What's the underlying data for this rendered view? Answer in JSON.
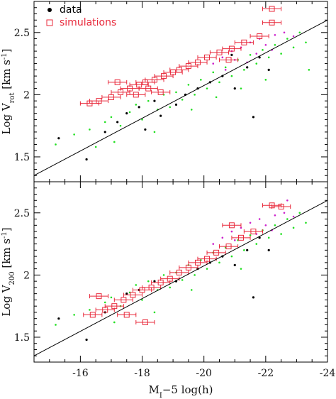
{
  "chart_data": [
    {
      "type": "scatter",
      "panel": "top",
      "ylabel_html": "Log V<tspan baseline-shift=\"sub\" font-size=\"10\">rot</tspan> [km s<tspan baseline-shift=\"super\" font-size=\"10\">-1</tspan>]",
      "ylabel": "Log V_rot [km s^-1]",
      "xlim": [
        -14.5,
        -24
      ],
      "ylim": [
        1.3,
        2.75
      ],
      "x_ticks": [
        -16,
        -18,
        -20,
        -22,
        -24
      ],
      "y_ticks": [
        1.5,
        2,
        2.5
      ],
      "x_tick_labels_shown": false,
      "legend": {
        "position": "top-left",
        "entries": [
          {
            "label": "data",
            "marker": "filled-circle",
            "color": "#000000"
          },
          {
            "label": "simulations",
            "marker": "open-square",
            "color": "#e8283a"
          }
        ]
      },
      "fit_line": {
        "x": [
          -14.5,
          -24
        ],
        "y": [
          1.35,
          2.6
        ]
      },
      "series": [
        {
          "name": "data",
          "color": "#000000",
          "points": [
            [
              -16.2,
              1.48
            ],
            [
              -15.3,
              1.65
            ],
            [
              -16.8,
              1.7
            ],
            [
              -17.2,
              1.78
            ],
            [
              -17.5,
              1.85
            ],
            [
              -17.9,
              1.9
            ],
            [
              -18.4,
              1.95
            ],
            [
              -18.6,
              1.83
            ],
            [
              -19.1,
              1.92
            ],
            [
              -19.4,
              2.0
            ],
            [
              -19.8,
              2.05
            ],
            [
              -20.2,
              2.1
            ],
            [
              -20.6,
              2.15
            ],
            [
              -21.0,
              2.05
            ],
            [
              -21.4,
              2.22
            ],
            [
              -21.8,
              2.3
            ],
            [
              -22.1,
              2.2
            ],
            [
              -21.6,
              1.82
            ],
            [
              -20.9,
              2.32
            ],
            [
              -18.1,
              1.72
            ]
          ]
        },
        {
          "name": "green",
          "color": "#22e022",
          "points": [
            [
              -15.2,
              1.6
            ],
            [
              -15.8,
              1.68
            ],
            [
              -16.3,
              1.72
            ],
            [
              -16.8,
              1.78
            ],
            [
              -17.0,
              1.82
            ],
            [
              -17.3,
              1.75
            ],
            [
              -17.6,
              1.86
            ],
            [
              -17.8,
              1.92
            ],
            [
              -18.0,
              1.8
            ],
            [
              -18.2,
              1.95
            ],
            [
              -18.5,
              1.88
            ],
            [
              -18.7,
              2.0
            ],
            [
              -18.9,
              1.9
            ],
            [
              -19.1,
              2.02
            ],
            [
              -19.3,
              1.96
            ],
            [
              -19.5,
              2.08
            ],
            [
              -19.7,
              2.0
            ],
            [
              -19.9,
              2.12
            ],
            [
              -20.1,
              2.05
            ],
            [
              -20.3,
              2.18
            ],
            [
              -20.5,
              2.1
            ],
            [
              -20.7,
              2.22
            ],
            [
              -20.9,
              2.15
            ],
            [
              -21.1,
              2.28
            ],
            [
              -21.3,
              2.2
            ],
            [
              -21.5,
              2.32
            ],
            [
              -21.7,
              2.25
            ],
            [
              -21.9,
              2.36
            ],
            [
              -22.1,
              2.3
            ],
            [
              -22.3,
              2.4
            ],
            [
              -22.5,
              2.33
            ],
            [
              -22.7,
              2.45
            ],
            [
              -22.9,
              2.38
            ],
            [
              -23.1,
              2.5
            ],
            [
              -23.3,
              2.42
            ],
            [
              -20.4,
              1.98
            ],
            [
              -19.6,
              1.88
            ],
            [
              -21.2,
              2.05
            ],
            [
              -22.0,
              2.12
            ],
            [
              -18.4,
              1.7
            ],
            [
              -17.1,
              1.62
            ],
            [
              -16.5,
              1.58
            ],
            [
              -23.4,
              2.2
            ]
          ]
        },
        {
          "name": "magenta",
          "color": "#cc22cc",
          "points": [
            [
              -20.3,
              2.25
            ],
            [
              -20.6,
              2.3
            ],
            [
              -20.9,
              2.35
            ],
            [
              -21.2,
              2.38
            ],
            [
              -21.5,
              2.42
            ],
            [
              -21.8,
              2.45
            ],
            [
              -22.0,
              2.4
            ],
            [
              -22.3,
              2.48
            ],
            [
              -22.6,
              2.5
            ],
            [
              -22.9,
              2.47
            ],
            [
              -21.0,
              2.28
            ],
            [
              -21.7,
              2.33
            ],
            [
              -22.2,
              2.36
            ],
            [
              -20.7,
              2.2
            ],
            [
              -21.4,
              2.26
            ]
          ]
        },
        {
          "name": "simulations",
          "color": "#e8283a",
          "marker": "open-square",
          "points": [
            [
              -16.6,
              1.95,
              0.3
            ],
            [
              -17.0,
              1.98,
              0.3
            ],
            [
              -17.3,
              2.02,
              0.3
            ],
            [
              -17.6,
              2.05,
              0.3
            ],
            [
              -17.9,
              2.08,
              0.3
            ],
            [
              -18.1,
              2.1,
              0.3
            ],
            [
              -18.4,
              2.12,
              0.3
            ],
            [
              -18.7,
              2.15,
              0.3
            ],
            [
              -19.0,
              2.18,
              0.3
            ],
            [
              -19.2,
              2.2,
              0.3
            ],
            [
              -19.5,
              2.23,
              0.3
            ],
            [
              -19.8,
              2.26,
              0.3
            ],
            [
              -20.1,
              2.3,
              0.3
            ],
            [
              -20.5,
              2.34,
              0.3
            ],
            [
              -20.9,
              2.37,
              0.3
            ],
            [
              -21.3,
              2.42,
              0.3
            ],
            [
              -21.8,
              2.47,
              0.3
            ],
            [
              -22.2,
              2.58,
              0.3
            ],
            [
              -22.2,
              2.69,
              0.3
            ],
            [
              -16.3,
              1.93,
              0.3
            ],
            [
              -17.8,
              2.0,
              0.3
            ],
            [
              -18.2,
              2.05,
              0.3
            ],
            [
              -18.6,
              2.02,
              0.3
            ],
            [
              -20.8,
              2.28,
              0.3
            ],
            [
              -17.2,
              2.1,
              0.3
            ]
          ]
        }
      ]
    },
    {
      "type": "scatter",
      "panel": "bottom",
      "ylabel_html": "Log V<tspan baseline-shift=\"sub\" font-size=\"10\">200</tspan> [km s<tspan baseline-shift=\"super\" font-size=\"10\">-1</tspan>]",
      "ylabel": "Log V_200 [km s^-1]",
      "xlabel_html": "M<tspan baseline-shift=\"sub\" font-size=\"10\">I</tspan>−5 log(h)",
      "xlabel": "M_I-5 log(h)",
      "xlim": [
        -14.5,
        -24
      ],
      "ylim": [
        1.3,
        2.75
      ],
      "x_ticks": [
        -16,
        -18,
        -20,
        -22,
        -24
      ],
      "y_ticks": [
        1.5,
        2,
        2.5
      ],
      "x_tick_labels": [
        "-16",
        "-18",
        "-20",
        "-22",
        "-24"
      ],
      "fit_line": {
        "x": [
          -14.5,
          -24
        ],
        "y": [
          1.35,
          2.6
        ]
      },
      "series": [
        {
          "name": "data",
          "color": "#000000",
          "points": [
            [
              -16.2,
              1.48
            ],
            [
              -15.3,
              1.65
            ],
            [
              -16.8,
              1.7
            ],
            [
              -17.5,
              1.85
            ],
            [
              -17.9,
              1.88
            ],
            [
              -18.4,
              1.95
            ],
            [
              -19.1,
              1.95
            ],
            [
              -19.8,
              2.05
            ],
            [
              -20.2,
              2.1
            ],
            [
              -20.6,
              2.15
            ],
            [
              -21.0,
              2.08
            ],
            [
              -21.4,
              2.2
            ],
            [
              -21.8,
              2.3
            ],
            [
              -21.6,
              1.82
            ],
            [
              -22.1,
              2.2
            ]
          ]
        },
        {
          "name": "green",
          "color": "#22e022",
          "points": [
            [
              -15.2,
              1.6
            ],
            [
              -15.8,
              1.68
            ],
            [
              -16.3,
              1.72
            ],
            [
              -16.8,
              1.78
            ],
            [
              -17.0,
              1.82
            ],
            [
              -17.3,
              1.75
            ],
            [
              -17.6,
              1.86
            ],
            [
              -17.8,
              1.92
            ],
            [
              -18.0,
              1.8
            ],
            [
              -18.2,
              1.95
            ],
            [
              -18.5,
              1.88
            ],
            [
              -18.7,
              2.0
            ],
            [
              -18.9,
              1.9
            ],
            [
              -19.1,
              2.02
            ],
            [
              -19.3,
              1.96
            ],
            [
              -19.5,
              2.08
            ],
            [
              -19.7,
              2.0
            ],
            [
              -19.9,
              2.12
            ],
            [
              -20.1,
              2.05
            ],
            [
              -20.3,
              2.18
            ],
            [
              -20.5,
              2.1
            ],
            [
              -20.7,
              2.22
            ],
            [
              -20.9,
              2.15
            ],
            [
              -21.1,
              2.28
            ],
            [
              -21.3,
              2.2
            ],
            [
              -21.5,
              2.32
            ],
            [
              -21.7,
              2.25
            ],
            [
              -21.9,
              2.36
            ],
            [
              -22.1,
              2.3
            ],
            [
              -22.3,
              2.4
            ],
            [
              -22.5,
              2.33
            ],
            [
              -22.7,
              2.45
            ],
            [
              -22.9,
              2.38
            ],
            [
              -23.1,
              2.5
            ],
            [
              -23.3,
              2.42
            ],
            [
              -19.6,
              1.88
            ],
            [
              -21.2,
              2.05
            ],
            [
              -18.4,
              1.7
            ],
            [
              -17.1,
              1.62
            ]
          ]
        },
        {
          "name": "magenta",
          "color": "#cc22cc",
          "points": [
            [
              -20.3,
              2.25
            ],
            [
              -20.6,
              2.3
            ],
            [
              -20.9,
              2.35
            ],
            [
              -21.2,
              2.38
            ],
            [
              -21.5,
              2.42
            ],
            [
              -21.8,
              2.45
            ],
            [
              -22.0,
              2.4
            ],
            [
              -22.3,
              2.48
            ],
            [
              -22.6,
              2.5
            ],
            [
              -22.9,
              2.47
            ],
            [
              -21.0,
              2.28
            ],
            [
              -21.7,
              2.33
            ],
            [
              -22.2,
              2.36
            ],
            [
              -22.7,
              2.6
            ]
          ]
        },
        {
          "name": "simulations",
          "color": "#e8283a",
          "marker": "open-square",
          "points": [
            [
              -16.4,
              1.68,
              0.3
            ],
            [
              -16.8,
              1.72,
              0.3
            ],
            [
              -17.1,
              1.75,
              0.3
            ],
            [
              -17.4,
              1.8,
              0.3
            ],
            [
              -17.7,
              1.84,
              0.3
            ],
            [
              -18.0,
              1.88,
              0.3
            ],
            [
              -18.3,
              1.9,
              0.3
            ],
            [
              -18.6,
              1.94,
              0.3
            ],
            [
              -18.9,
              1.97,
              0.3
            ],
            [
              -19.2,
              2.02,
              0.3
            ],
            [
              -19.5,
              2.06,
              0.3
            ],
            [
              -19.8,
              2.1,
              0.3
            ],
            [
              -20.1,
              2.13,
              0.3
            ],
            [
              -20.4,
              2.18,
              0.3
            ],
            [
              -20.8,
              2.23,
              0.3
            ],
            [
              -21.2,
              2.3,
              0.3
            ],
            [
              -21.6,
              2.35,
              0.3
            ],
            [
              -22.2,
              2.56,
              0.3
            ],
            [
              -22.5,
              2.55,
              0.3
            ],
            [
              -18.1,
              1.62,
              0.3
            ],
            [
              -17.5,
              1.68,
              0.3
            ],
            [
              -20.9,
              2.4,
              0.3
            ],
            [
              -16.6,
              1.83,
              0.3
            ]
          ]
        }
      ]
    }
  ]
}
